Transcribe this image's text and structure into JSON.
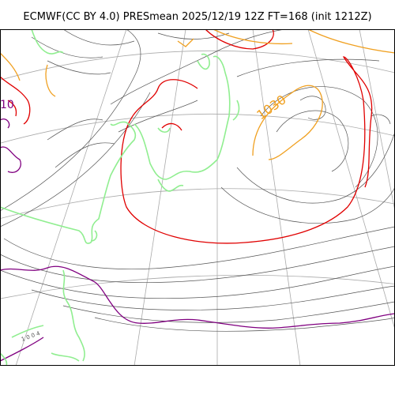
{
  "title": "ECMWF(CC BY 4.0) PRESmean 2025/12/19 12Z FT=168 (init 1212Z)",
  "labels": {
    "high_isobar": "1030",
    "left_isobar_fragment": "10",
    "small_isobar_label": "1 0 0 4"
  },
  "colors": {
    "isobar_thin": "#555555",
    "isobar_1020_red": "#e00000",
    "isobar_high_orange": "#f0a020",
    "isobar_low_purple": "#800080",
    "coastline": "#90ee90",
    "graticule": "#aaaaaa",
    "frame": "#000000"
  }
}
